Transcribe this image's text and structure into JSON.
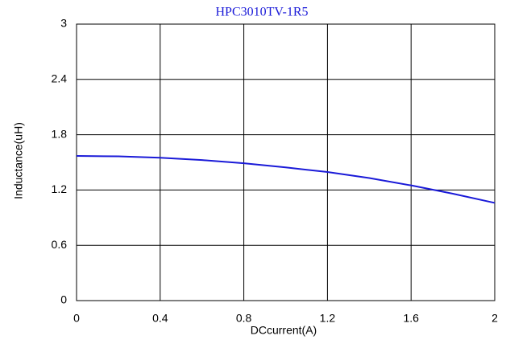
{
  "chart_data": {
    "type": "line",
    "title": "HPC3010TV-1R5",
    "x_label": "DCcurrent(A)",
    "y_label": "Inductance(uH)",
    "x": [
      0,
      0.2,
      0.4,
      0.6,
      0.8,
      1.0,
      1.2,
      1.4,
      1.6,
      1.8,
      2.0
    ],
    "series": [
      {
        "name": "HPC3010TV-1R5",
        "color": "#1a1ad8",
        "values": [
          1.57,
          1.565,
          1.55,
          1.525,
          1.49,
          1.445,
          1.395,
          1.33,
          1.25,
          1.16,
          1.06
        ]
      }
    ],
    "xlim": [
      0,
      2
    ],
    "xticks": [
      0,
      0.4,
      0.8,
      1.2,
      1.6,
      2
    ],
    "ylim": [
      0,
      3
    ],
    "yticks": [
      0,
      0.6,
      1.2,
      1.8,
      2.4,
      3
    ],
    "grid": true
  }
}
